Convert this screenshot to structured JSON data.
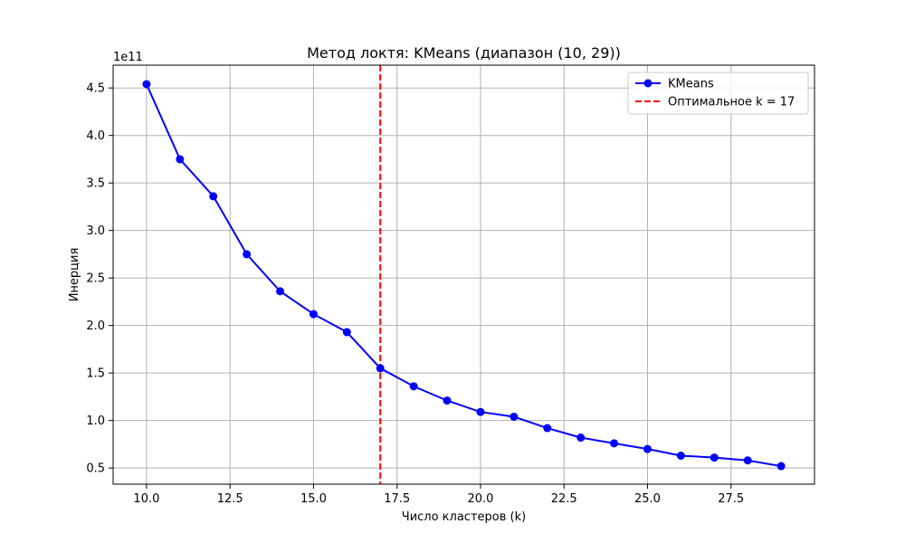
{
  "chart_data": {
    "type": "line",
    "title": "Метод локтя: KMeans (диапазон (10, 29))",
    "xlabel": "Число кластеров (k)",
    "ylabel": "Инерция",
    "y_offset_label": "1e11",
    "y_scale_exponent": 11,
    "xlim": [
      9,
      30
    ],
    "ylim": [
      0.33,
      4.74
    ],
    "x_ticks": [
      10.0,
      12.5,
      15.0,
      17.5,
      20.0,
      22.5,
      25.0,
      27.5
    ],
    "x_tick_labels": [
      "10.0",
      "12.5",
      "15.0",
      "17.5",
      "20.0",
      "22.5",
      "25.0",
      "27.5"
    ],
    "y_ticks": [
      0.5,
      1.0,
      1.5,
      2.0,
      2.5,
      3.0,
      3.5,
      4.0,
      4.5
    ],
    "y_tick_labels": [
      "0.5",
      "1.0",
      "1.5",
      "2.0",
      "2.5",
      "3.0",
      "3.5",
      "4.0",
      "4.5"
    ],
    "grid": true,
    "legend_position": "top-right",
    "series": [
      {
        "name": "KMeans",
        "color": "#0000ff",
        "marker": "circle",
        "x": [
          10,
          11,
          12,
          13,
          14,
          15,
          16,
          17,
          18,
          19,
          20,
          21,
          22,
          23,
          24,
          25,
          26,
          27,
          28,
          29
        ],
        "y": [
          4.54,
          3.75,
          3.36,
          2.75,
          2.36,
          2.12,
          1.93,
          1.55,
          1.36,
          1.21,
          1.09,
          1.04,
          0.92,
          0.82,
          0.76,
          0.7,
          0.63,
          0.61,
          0.58,
          0.52
        ]
      }
    ],
    "vlines": [
      {
        "name": "Оптимальное k = 17",
        "x": 17,
        "color": "#ff0000",
        "style": "dashed"
      }
    ]
  }
}
